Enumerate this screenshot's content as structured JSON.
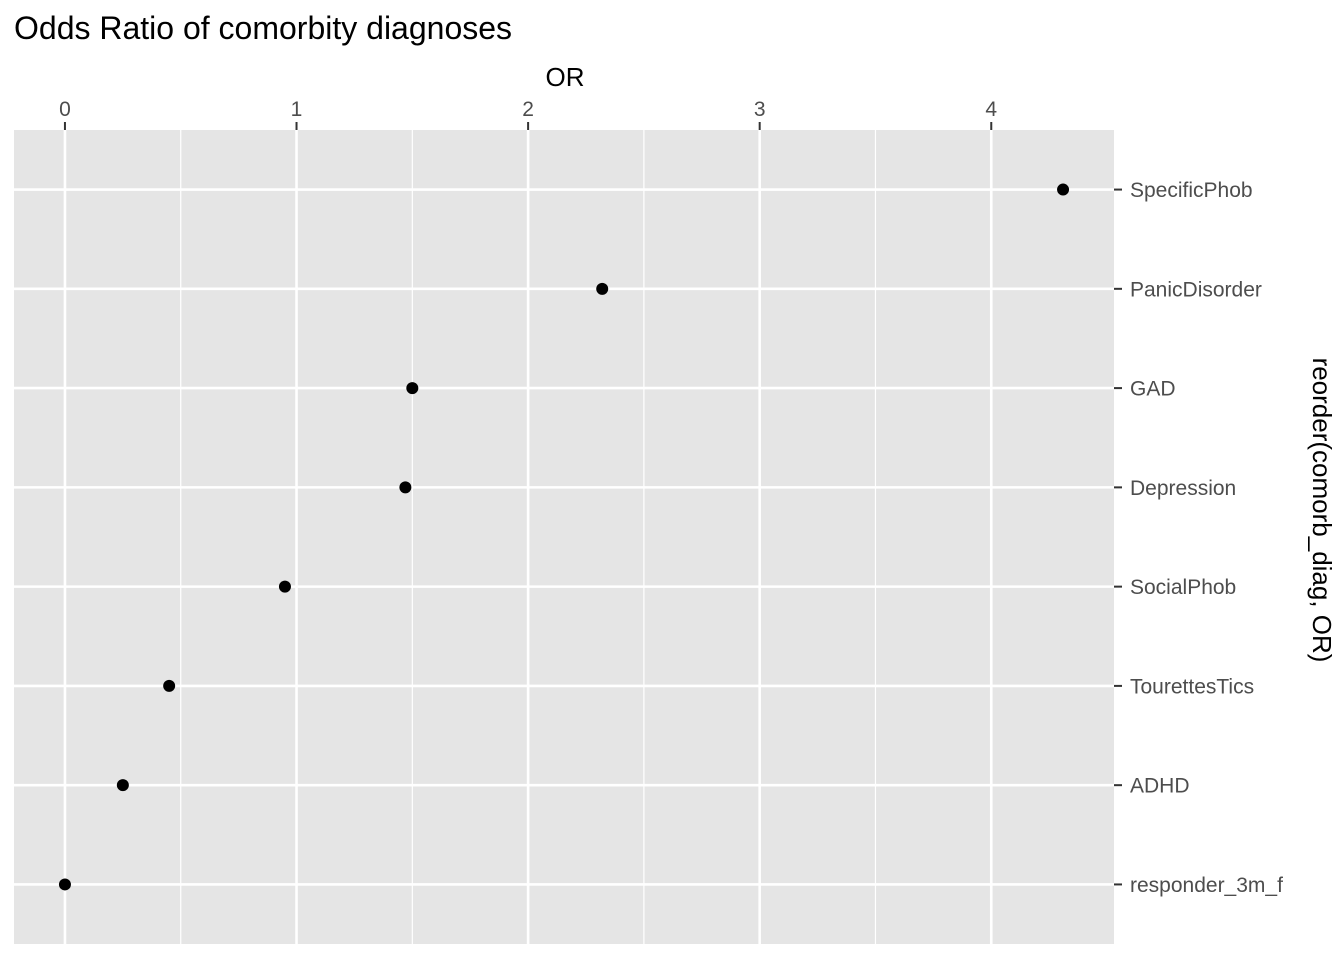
{
  "chart_data": {
    "type": "scatter",
    "title": "Odds Ratio of comorbity diagnoses",
    "xlabel": "OR",
    "ylabel": "reorder(comorb_diag, OR)",
    "x_axis_position": "top",
    "y_axis_position": "right",
    "xlim": [
      -0.22,
      4.53
    ],
    "x_ticks": [
      0,
      1,
      2,
      3,
      4
    ],
    "x_tick_labels": [
      "0",
      "1",
      "2",
      "3",
      "4"
    ],
    "grid": true,
    "legend": "none",
    "categories": [
      "responder_3m_f",
      "ADHD",
      "TourettesTics",
      "SocialPhob",
      "Depression",
      "GAD",
      "PanicDisorder",
      "SpecificPhob"
    ],
    "values": [
      0.0,
      0.25,
      0.45,
      0.95,
      1.47,
      1.5,
      2.32,
      4.31
    ],
    "colors": {
      "panel": "#e5e5e5",
      "grid": "#ffffff",
      "point": "#000000",
      "tick": "#333333"
    }
  }
}
